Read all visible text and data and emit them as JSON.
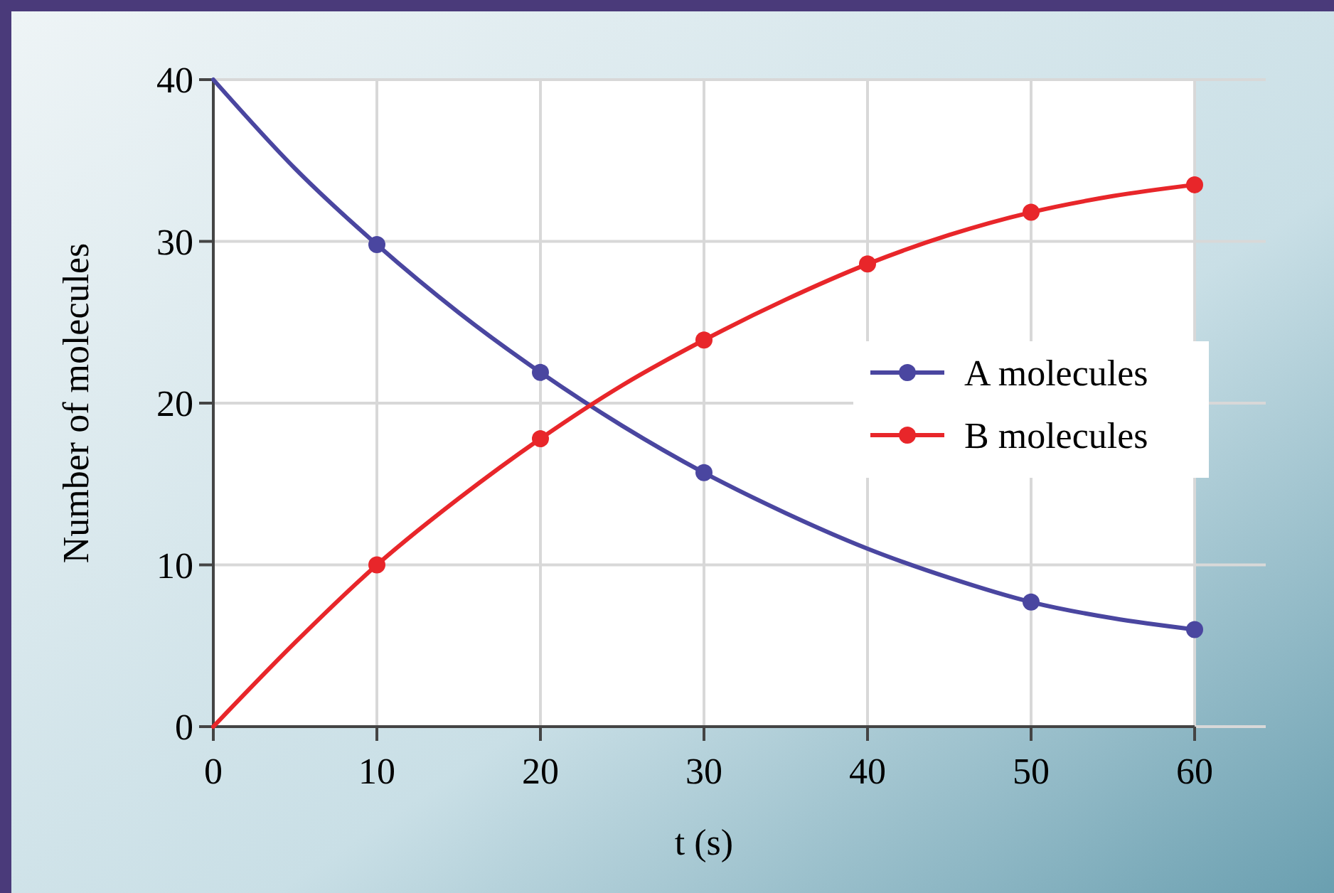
{
  "chart_data": {
    "type": "line",
    "xlabel": "t (s)",
    "ylabel": "Number of molecules",
    "xlim": [
      0,
      60
    ],
    "xticks": [
      0,
      10,
      20,
      30,
      40,
      50,
      60
    ],
    "ylim": [
      0,
      40
    ],
    "yticks": [
      0,
      10,
      20,
      30,
      40
    ],
    "grid": true,
    "legend": "right",
    "line_style": "solid",
    "series": [
      {
        "name": "A molecules",
        "color": "#4a46a0",
        "marker": "none",
        "x": [
          0,
          5,
          10,
          15,
          20,
          25,
          30,
          35,
          40,
          45,
          50,
          55,
          60
        ],
        "values": [
          40,
          34.5,
          29.8,
          25.6,
          21.9,
          18.6,
          15.7,
          13.2,
          11,
          9.2,
          7.7,
          6.7,
          6
        ]
      },
      {
        "name": "B molecules",
        "color": "#e8262a",
        "marker": "none",
        "x": [
          0,
          5,
          10,
          15,
          20,
          25,
          30,
          35,
          40,
          45,
          50,
          55,
          60
        ],
        "values": [
          0,
          5.2,
          10,
          14.1,
          17.8,
          21.1,
          23.9,
          26.4,
          28.6,
          30.4,
          31.8,
          32.8,
          33.5
        ]
      },
      {
        "type": "scatter",
        "color": "#4a46a0",
        "marker": "circle",
        "x": [
          10,
          20,
          30,
          50,
          60
        ],
        "values": [
          29.8,
          21.9,
          15.7,
          7.7,
          6
        ]
      },
      {
        "type": "scatter",
        "color": "#e8262a",
        "marker": "circle",
        "x": [
          10,
          20,
          30,
          40,
          50,
          60
        ],
        "values": [
          10,
          17.8,
          23.9,
          28.6,
          31.8,
          33.5
        ]
      }
    ]
  }
}
